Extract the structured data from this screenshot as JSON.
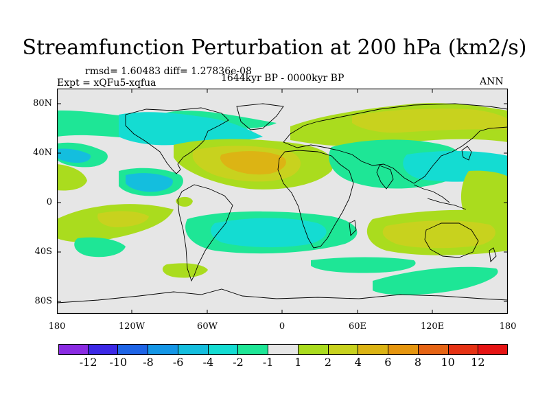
{
  "title": "Streamfunction Perturbation at 200 hPa (km2/s)",
  "stats": "rmsd= 1.60483 diff= 1.27836e-08",
  "experiment": "Expt = xQFu5-xqfua",
  "period": "1644kyr BP - 0000kyr BP",
  "season": "ANN",
  "map": {
    "projection": "cylindrical equidistant",
    "lat_labels": [
      "80N",
      "40N",
      "0",
      "40S",
      "80S"
    ],
    "lon_labels": [
      "180",
      "120W",
      "60W",
      "0",
      "60E",
      "120E",
      "180"
    ]
  },
  "colorbar": {
    "colors": [
      "#8a2be2",
      "#3c28e6",
      "#1e64e6",
      "#1496e6",
      "#14bede",
      "#14dcd2",
      "#1ee696",
      "#e6e6e6",
      "#aadc1e",
      "#c8d21e",
      "#dcb414",
      "#e6960f",
      "#e66414",
      "#e63214",
      "#e61414"
    ],
    "labels": [
      "-12",
      "-10",
      "-8",
      "-6",
      "-4",
      "-2",
      "-1",
      "1",
      "2",
      "4",
      "6",
      "8",
      "10",
      "12"
    ]
  },
  "features": {
    "background": "#e6e6e6",
    "coast": "#000000"
  }
}
